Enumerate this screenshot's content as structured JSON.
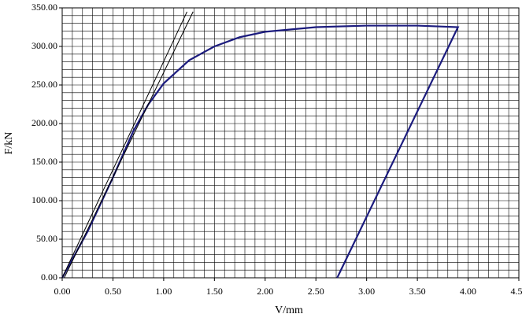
{
  "chart_data": {
    "type": "line",
    "xlabel": "V/mm",
    "ylabel": "F/kN",
    "xlim": [
      0,
      4.5
    ],
    "ylim": [
      0,
      350
    ],
    "xticks": [
      {
        "value": 0,
        "label": "0.00"
      },
      {
        "value": 0.5,
        "label": "0.50"
      },
      {
        "value": 1,
        "label": "1.00"
      },
      {
        "value": 1.5,
        "label": "1.50"
      },
      {
        "value": 2,
        "label": "2.00"
      },
      {
        "value": 2.5,
        "label": "2.50"
      },
      {
        "value": 3,
        "label": "3.00"
      },
      {
        "value": 3.5,
        "label": "3.50"
      },
      {
        "value": 4,
        "label": "4.00"
      },
      {
        "value": 4.5,
        "label": "4.50"
      }
    ],
    "yticks": [
      {
        "value": 0,
        "label": "0.00"
      },
      {
        "value": 50,
        "label": "50.00"
      },
      {
        "value": 100,
        "label": "100.00"
      },
      {
        "value": 150,
        "label": "150.00"
      },
      {
        "value": 200,
        "label": "200.00"
      },
      {
        "value": 250,
        "label": "250.00"
      },
      {
        "value": 300,
        "label": "300.00"
      },
      {
        "value": 350,
        "label": "350.00"
      }
    ],
    "grid": true,
    "minor_grid_step": [
      0.1,
      10
    ],
    "series": [
      {
        "color": "#1c1c7e",
        "x": [
          0,
          0.25,
          0.5,
          0.7,
          0.85,
          1.0,
          1.25,
          1.5,
          1.75,
          2.0,
          2.5,
          3.0,
          3.5,
          3.9,
          2.71
        ],
        "values": [
          0,
          60,
          130,
          190,
          225,
          252,
          282,
          300,
          312,
          319,
          325,
          327,
          327,
          325,
          0
        ]
      },
      {
        "color": "#000000",
        "x": [
          0,
          1.23
        ],
        "values": [
          0,
          345
        ]
      },
      {
        "color": "#000000",
        "x": [
          0.02,
          1.29
        ],
        "values": [
          0,
          345
        ]
      }
    ]
  }
}
